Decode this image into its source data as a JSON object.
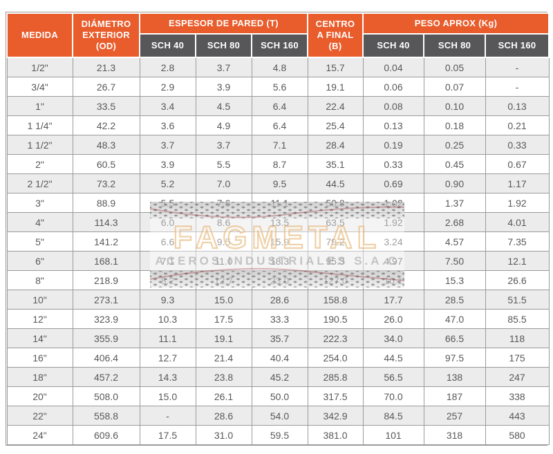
{
  "colors": {
    "header_orange": "#E95C2B",
    "header_dark_gray": "#57575A",
    "row_alt_gray": "#ECECEC",
    "border_gray": "#9A9A9A",
    "body_text": "#58585A",
    "watermark_red": "#8E1A22"
  },
  "table": {
    "header": {
      "medida": "MEDIDA",
      "diametro_exterior": "DIÁMETRO\nEXTERIOR\n(OD)",
      "espesor_de_pared": "ESPESOR DE PARED (T)",
      "centro_a_final": "CENTRO\nA FINAL\n(B)",
      "peso_aprox": "PESO APROX (Kg)",
      "sch_columns": [
        "SCH 40",
        "SCH 80",
        "SCH 160"
      ]
    },
    "rows": [
      [
        "1/2\"",
        "21.3",
        "2.8",
        "3.7",
        "4.8",
        "15.7",
        "0.04",
        "0.05",
        "-"
      ],
      [
        "3/4\"",
        "26.7",
        "2.9",
        "3.9",
        "5.6",
        "19.1",
        "0.06",
        "0.07",
        "-"
      ],
      [
        "1\"",
        "33.5",
        "3.4",
        "4.5",
        "6.4",
        "22.4",
        "0.08",
        "0.10",
        "0.13"
      ],
      [
        "1 1/4\"",
        "42.2",
        "3.6",
        "4.9",
        "6.4",
        "25.4",
        "0.13",
        "0.18",
        "0.21"
      ],
      [
        "1 1/2\"",
        "48.3",
        "3.7",
        "3.7",
        "7.1",
        "28.4",
        "0.19",
        "0.25",
        "0.33"
      ],
      [
        "2\"",
        "60.5",
        "3.9",
        "5.5",
        "8.7",
        "35.1",
        "0.33",
        "0.45",
        "0.67"
      ],
      [
        "2 1/2\"",
        "73.2",
        "5.2",
        "7.0",
        "9.5",
        "44.5",
        "0.69",
        "0.90",
        "1.17"
      ],
      [
        "3\"",
        "88.9",
        "5.5",
        "7.6",
        "11.1",
        "50.8",
        "1.02",
        "1.37",
        "1.92"
      ],
      [
        "4\"",
        "114.3",
        "6.0",
        "8.6",
        "13.5",
        "63.5",
        "1.92",
        "2.68",
        "4.01"
      ],
      [
        "5\"",
        "141.2",
        "6.6",
        "9.5",
        "15.9",
        "79.2",
        "3.24",
        "4.57",
        "7.35"
      ],
      [
        "6\"",
        "168.1",
        "7.1",
        "11.0",
        "18.3",
        "95.3",
        "4.97",
        "7.50",
        "12.1"
      ],
      [
        "8\"",
        "218.9",
        "8.2",
        "12.7",
        "23.0",
        "127.0",
        "10.1",
        "15.3",
        "26.6"
      ],
      [
        "10\"",
        "273.1",
        "9.3",
        "15.0",
        "28.6",
        "158.8",
        "17.7",
        "28.5",
        "51.5"
      ],
      [
        "12\"",
        "323.9",
        "10.3",
        "17.5",
        "33.3",
        "190.5",
        "26.0",
        "47.0",
        "85.5"
      ],
      [
        "14\"",
        "355.9",
        "11.1",
        "19.1",
        "35.7",
        "222.3",
        "34.0",
        "66.5",
        "118"
      ],
      [
        "16\"",
        "406.4",
        "12.7",
        "21.4",
        "40.4",
        "254.0",
        "44.5",
        "97.5",
        "175"
      ],
      [
        "18\"",
        "457.2",
        "14.3",
        "23.8",
        "45.2",
        "285.8",
        "56.5",
        "138",
        "247"
      ],
      [
        "20\"",
        "508.0",
        "15.0",
        "26.1",
        "50.0",
        "317.5",
        "70.0",
        "187",
        "338"
      ],
      [
        "22\"",
        "558.8",
        "-",
        "28.6",
        "54.0",
        "342.9",
        "84.5",
        "257",
        "443"
      ],
      [
        "24\"",
        "609.6",
        "17.5",
        "31.0",
        "59.5",
        "381.0",
        "101",
        "318",
        "580"
      ]
    ]
  },
  "watermark": {
    "title": "FAGMETAL",
    "subtitle": "ACEROS INDUSTRIALES S.A.C"
  }
}
